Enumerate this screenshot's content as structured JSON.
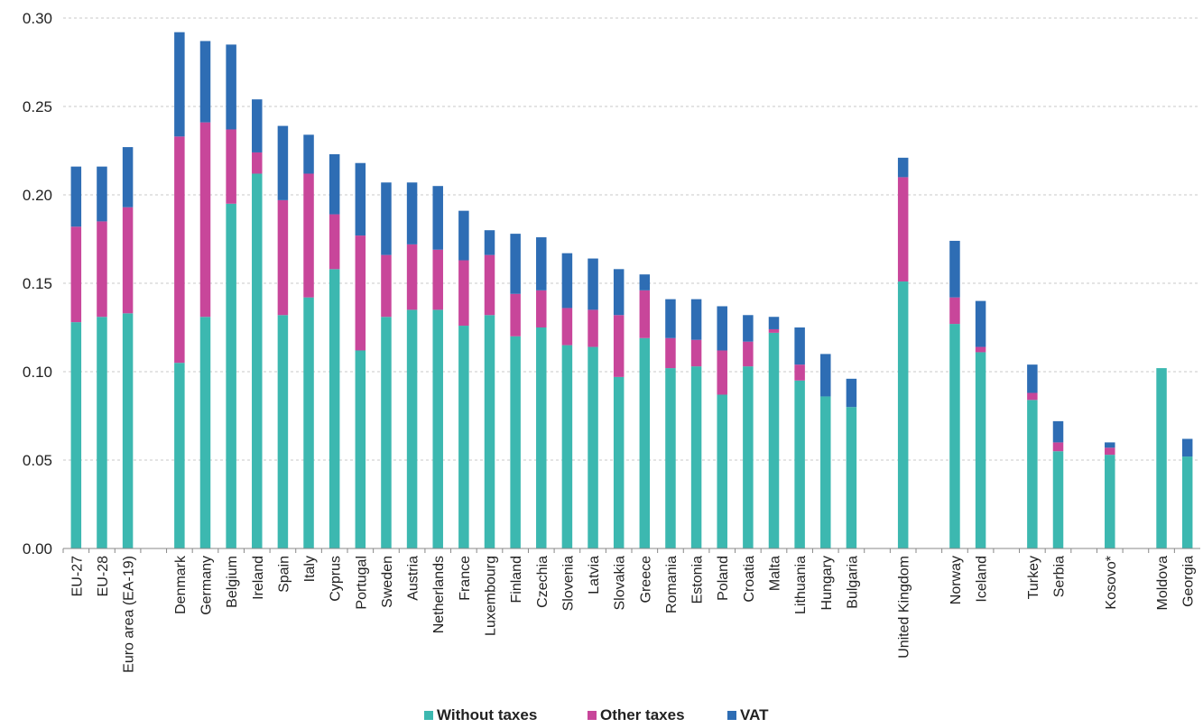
{
  "chart_data": {
    "type": "bar",
    "stacked": true,
    "ylim": [
      0,
      0.3
    ],
    "yticks": [
      "0.00",
      "0.05",
      "0.10",
      "0.15",
      "0.20",
      "0.25",
      "0.30"
    ],
    "grid": true,
    "legend_position": "bottom",
    "categories": [
      "EU-27",
      "EU-28",
      "Euro area (EA-19)",
      "",
      "Denmark",
      "Germany",
      "Belgium",
      "Ireland",
      "Spain",
      "Italy",
      "Cyprus",
      "Portugal",
      "Sweden",
      "Austria",
      "Netherlands",
      "France",
      "Luxembourg",
      "Finland",
      "Czechia",
      "Slovenia",
      "Latvia",
      "Slovakia",
      "Greece",
      "Romania",
      "Estonia",
      "Poland",
      "Croatia",
      "Malta",
      "Lithuania",
      "Hungary",
      "Bulgaria",
      "",
      "United Kingdom",
      "",
      "Norway",
      "Iceland",
      "",
      "Turkey",
      "Serbia",
      "",
      "Kosovo*",
      "",
      "Moldova",
      "Georgia"
    ],
    "series": [
      {
        "name": "Without taxes",
        "color": "#3cb8b0",
        "values": [
          0.128,
          0.131,
          0.133,
          null,
          0.105,
          0.131,
          0.195,
          0.212,
          0.132,
          0.142,
          0.158,
          0.112,
          0.131,
          0.135,
          0.135,
          0.126,
          0.132,
          0.12,
          0.125,
          0.115,
          0.114,
          0.097,
          0.119,
          0.102,
          0.103,
          0.087,
          0.103,
          0.122,
          0.095,
          0.086,
          0.08,
          null,
          0.151,
          null,
          0.127,
          0.111,
          null,
          0.084,
          0.055,
          null,
          0.053,
          null,
          0.102,
          0.052
        ]
      },
      {
        "name": "Other taxes",
        "color": "#c8469a",
        "values": [
          0.054,
          0.054,
          0.06,
          null,
          0.128,
          0.11,
          0.042,
          0.012,
          0.065,
          0.07,
          0.031,
          0.065,
          0.035,
          0.037,
          0.034,
          0.037,
          0.034,
          0.024,
          0.021,
          0.021,
          0.021,
          0.035,
          0.027,
          0.017,
          0.015,
          0.025,
          0.014,
          0.002,
          0.009,
          0.0,
          0.0,
          null,
          0.059,
          null,
          0.015,
          0.003,
          null,
          0.004,
          0.005,
          null,
          0.004,
          null,
          0.0,
          0.0
        ]
      },
      {
        "name": "VAT",
        "color": "#2e6db4",
        "values": [
          0.034,
          0.031,
          0.034,
          null,
          0.059,
          0.046,
          0.048,
          0.03,
          0.042,
          0.022,
          0.034,
          0.041,
          0.041,
          0.035,
          0.036,
          0.028,
          0.014,
          0.034,
          0.03,
          0.031,
          0.029,
          0.026,
          0.009,
          0.022,
          0.023,
          0.025,
          0.015,
          0.007,
          0.021,
          0.024,
          0.016,
          null,
          0.011,
          null,
          0.032,
          0.026,
          null,
          0.016,
          0.012,
          null,
          0.003,
          null,
          0.0,
          0.01
        ]
      }
    ]
  }
}
